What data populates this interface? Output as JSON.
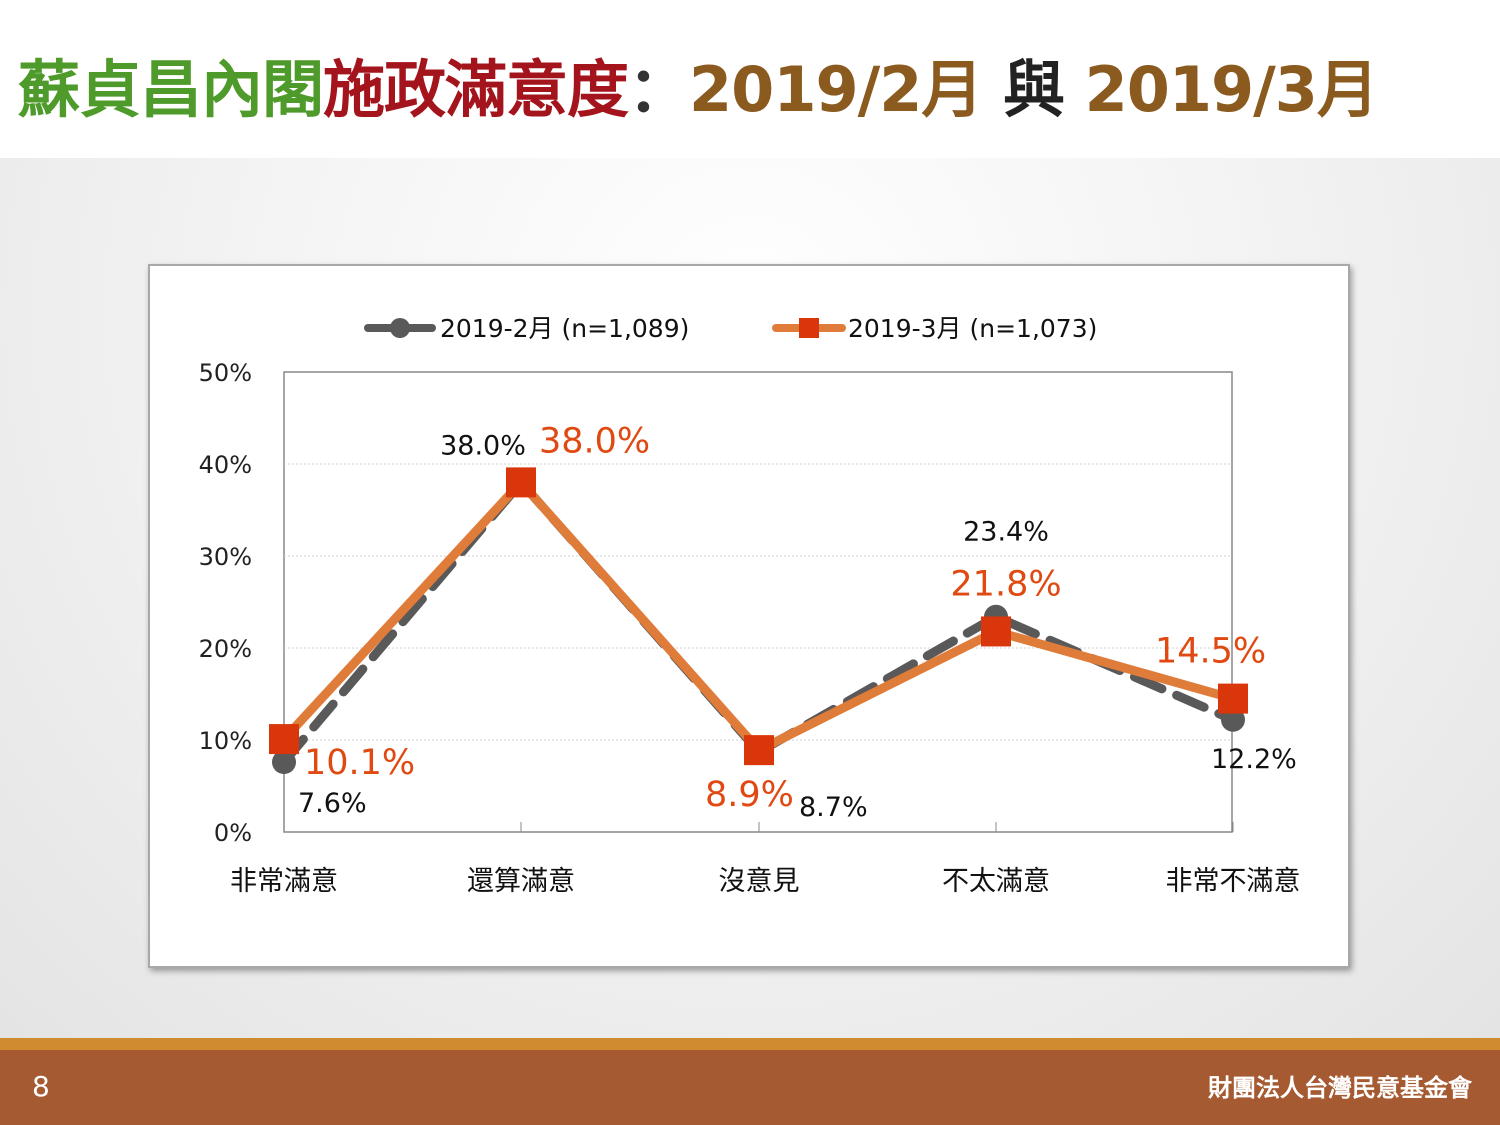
{
  "title": {
    "part1": "蘇貞昌內閣",
    "part2": "施政滿意度",
    "separator": "：",
    "part3": "2019/2月",
    "conjunction": " 與 ",
    "part4": "2019/3月"
  },
  "colors": {
    "series_feb": "#595959",
    "series_mar_line": "#e07c3a",
    "series_mar_marker": "#d9360b",
    "label_mar": "#e04a12",
    "footer": "#a65a32",
    "footer_stripe": "#d08a30"
  },
  "chart_data": {
    "type": "line",
    "categories": [
      "非常滿意",
      "還算滿意",
      "沒意見",
      "不太滿意",
      "非常不滿意"
    ],
    "ylim": [
      0,
      50
    ],
    "yticks": [
      "0%",
      "10%",
      "20%",
      "30%",
      "40%",
      "50%"
    ],
    "grid": true,
    "legend_position": "top",
    "series": [
      {
        "name": "2019-2月  (n=1,089)",
        "values": [
          7.6,
          38.0,
          8.7,
          23.4,
          12.2
        ],
        "labels": [
          "7.6%",
          "38.0%",
          "8.7%",
          "23.4%",
          "12.2%"
        ]
      },
      {
        "name": "2019-3月  (n=1,073)",
        "values": [
          10.1,
          38.0,
          8.9,
          21.8,
          14.5
        ],
        "labels": [
          "10.1%",
          "38.0%",
          "8.9%",
          "21.8%",
          "14.5%"
        ]
      }
    ]
  },
  "footer": {
    "page_number": "8",
    "organization": "財團法人台灣民意基金會"
  }
}
